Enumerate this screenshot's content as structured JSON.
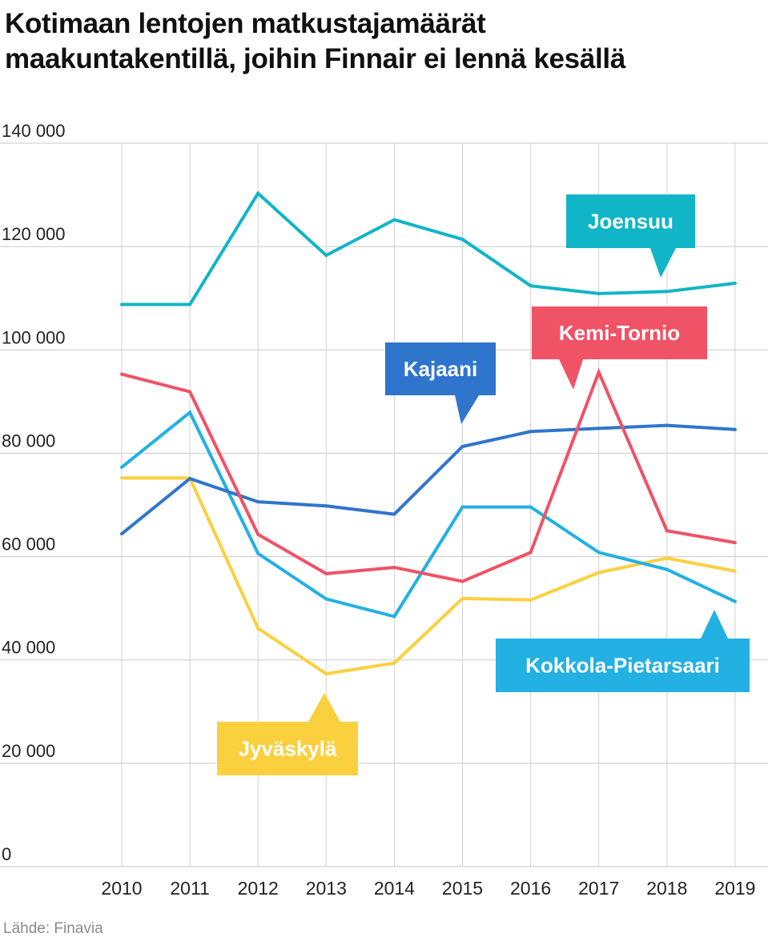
{
  "chart_data": {
    "type": "line",
    "title": "Kotimaan lentojen matkustajamäärät maakuntakentillä, joihin Finnair ei lennä kesällä",
    "title_lines": [
      "Kotimaan lentojen matkustajamäärät",
      "maakuntakentillä, joihin Finnair ei lennä kesällä"
    ],
    "xlabel": "",
    "ylabel": "",
    "x": [
      "2010",
      "2011",
      "2012",
      "2013",
      "2014",
      "2015",
      "2016",
      "2017",
      "2018",
      "2019"
    ],
    "ylim": [
      0,
      140000
    ],
    "yticks": [
      0,
      20000,
      40000,
      60000,
      80000,
      100000,
      120000,
      140000
    ],
    "ytick_labels": [
      "0",
      "20 000",
      "40 000",
      "60 000",
      "80 000",
      "100 000",
      "120 000",
      "140 000"
    ],
    "grid": true,
    "series": [
      {
        "name": "Joensuu",
        "color": "#10b5c7",
        "values": [
          108800,
          108800,
          130300,
          118300,
          125200,
          121400,
          112400,
          110900,
          111300,
          112900
        ]
      },
      {
        "name": "Kemi-Tornio",
        "color": "#f05266",
        "values": [
          95300,
          91900,
          64300,
          56700,
          57900,
          55200,
          60800,
          95700,
          65000,
          62700
        ]
      },
      {
        "name": "Kajaani",
        "color": "#2f75cc",
        "values": [
          64400,
          75100,
          70600,
          69800,
          68200,
          81300,
          84200,
          84800,
          85400,
          84600
        ]
      },
      {
        "name": "Kokkola-Pietarsaari",
        "color": "#23b0e3",
        "values": [
          77300,
          87900,
          60600,
          51800,
          48400,
          69600,
          69600,
          60800,
          57500,
          51300
        ]
      },
      {
        "name": "Jyväskylä",
        "color": "#fbd03e",
        "values": [
          75200,
          75200,
          46100,
          37300,
          39400,
          51900,
          51600,
          56900,
          59700,
          57200
        ]
      }
    ],
    "annotations": [
      {
        "label": "Joensuu",
        "series": "Joensuu",
        "pointer": "down"
      },
      {
        "label": "Kemi-Tornio",
        "series": "Kemi-Tornio",
        "pointer": "down"
      },
      {
        "label": "Kajaani",
        "series": "Kajaani",
        "pointer": "down"
      },
      {
        "label": "Kokkola-Pietarsaari",
        "series": "Kokkola-Pietarsaari",
        "pointer": "up"
      },
      {
        "label": "Jyväskylä",
        "series": "Jyväskylä",
        "pointer": "up"
      }
    ]
  },
  "source": "Lähde: Finavia"
}
